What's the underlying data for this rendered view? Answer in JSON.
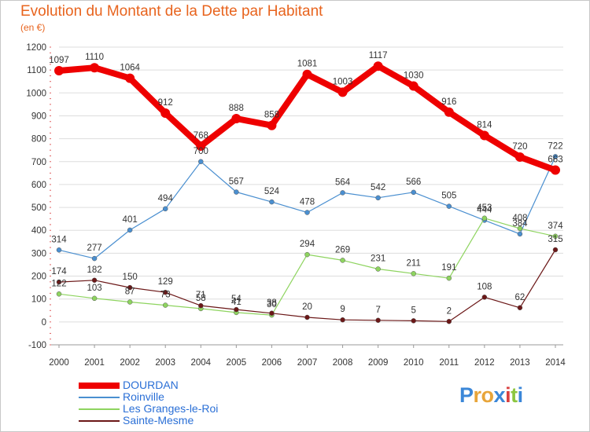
{
  "title": "Evolution du Montant de la Dette par Habitant",
  "subtitle": "(en €)",
  "logo_text": "Proxiti",
  "chart_data": {
    "type": "line",
    "x": [
      "2000",
      "2001",
      "2002",
      "2003",
      "2004",
      "2005",
      "2006",
      "2007",
      "2008",
      "2009",
      "2010",
      "2011",
      "2012",
      "2013",
      "2014"
    ],
    "ylim": [
      -100,
      1200
    ],
    "yticks": [
      -100,
      0,
      100,
      200,
      300,
      400,
      500,
      600,
      700,
      800,
      900,
      1000,
      1100,
      1200
    ],
    "grid": "horizontal",
    "legend_position": "bottom-left",
    "series": [
      {
        "name": "DOURDAN",
        "color": "#ee0000",
        "values": [
          1097,
          1110,
          1064,
          912,
          768,
          888,
          858,
          1081,
          1003,
          1117,
          1030,
          916,
          814,
          720,
          663
        ],
        "labels": [
          "1097",
          "1110",
          "1064",
          "912",
          "768",
          "888",
          "858",
          "1081",
          "1003",
          "1117",
          "1030",
          "916",
          "814",
          "720",
          "663"
        ]
      },
      {
        "name": "Roinville",
        "color": "#4a8fd0",
        "values": [
          314,
          277,
          401,
          494,
          700,
          567,
          524,
          478,
          564,
          542,
          566,
          505,
          444,
          384,
          722
        ],
        "labels": [
          "314",
          "277",
          "401",
          "494",
          "700",
          "567",
          "524",
          "478",
          "564",
          "542",
          "566",
          "505",
          "444",
          "384",
          "722"
        ]
      },
      {
        "name": "Les Granges-le-Roi",
        "color": "#8ed45f",
        "values": [
          122,
          103,
          87,
          73,
          58,
          41,
          30,
          294,
          269,
          231,
          211,
          191,
          453,
          408,
          374
        ],
        "labels": [
          "122",
          "103",
          "87",
          "73",
          "58",
          "41",
          "30",
          "294",
          "269",
          "231",
          "211",
          "191",
          "453",
          "408",
          "374"
        ]
      },
      {
        "name": "Sainte-Mesme",
        "color": "#6b1717",
        "values": [
          174,
          182,
          150,
          129,
          71,
          54,
          38,
          20,
          9,
          7,
          5,
          2,
          108,
          62,
          315
        ],
        "labels": [
          "174",
          "182",
          "150",
          "129",
          "71",
          "54",
          "38",
          "20",
          "9",
          "7",
          "5",
          "2",
          "108",
          "62",
          "315"
        ]
      }
    ]
  }
}
